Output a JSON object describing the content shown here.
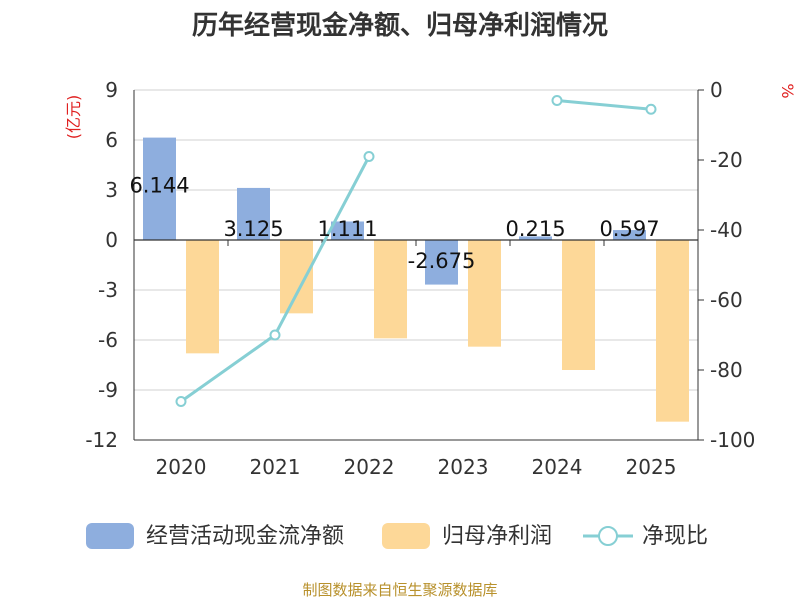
{
  "chart_data": {
    "type": "bar",
    "title": "历年经营现金净额、归母净利润情况",
    "categories": [
      "2020",
      "2021",
      "2022",
      "2023",
      "2024",
      "2025"
    ],
    "left_axis": {
      "unit": "(亿元)",
      "ylim": [
        -12,
        9
      ],
      "ticks": [
        9,
        6,
        3,
        0,
        -3,
        -6,
        -9,
        -12
      ]
    },
    "right_axis": {
      "unit": "%",
      "ylim": [
        -100,
        0
      ],
      "ticks": [
        0,
        -20,
        -40,
        -60,
        -80,
        -100
      ]
    },
    "series": [
      {
        "name": "经营活动现金流净额",
        "type": "bar",
        "axis": "left",
        "color": "#8eaede",
        "values": [
          6.144,
          3.125,
          1.111,
          -2.675,
          0.215,
          0.597
        ],
        "labels": [
          "6.144",
          "3.125",
          "1.111",
          "-2.675",
          "0.215",
          "0.597"
        ]
      },
      {
        "name": "归母净利润",
        "type": "bar",
        "axis": "left",
        "color": "#fdd898",
        "values": [
          -6.8,
          -4.4,
          -5.9,
          -6.4,
          -7.8,
          -10.9
        ]
      },
      {
        "name": "净现比",
        "type": "line",
        "axis": "right",
        "color": "#86cfd4",
        "values": [
          -89,
          -70,
          -19,
          null,
          -3,
          -5.5
        ]
      }
    ],
    "grid": true,
    "legend": "bottom"
  },
  "footer": {
    "source": "制图数据来自恒生聚源数据库"
  }
}
